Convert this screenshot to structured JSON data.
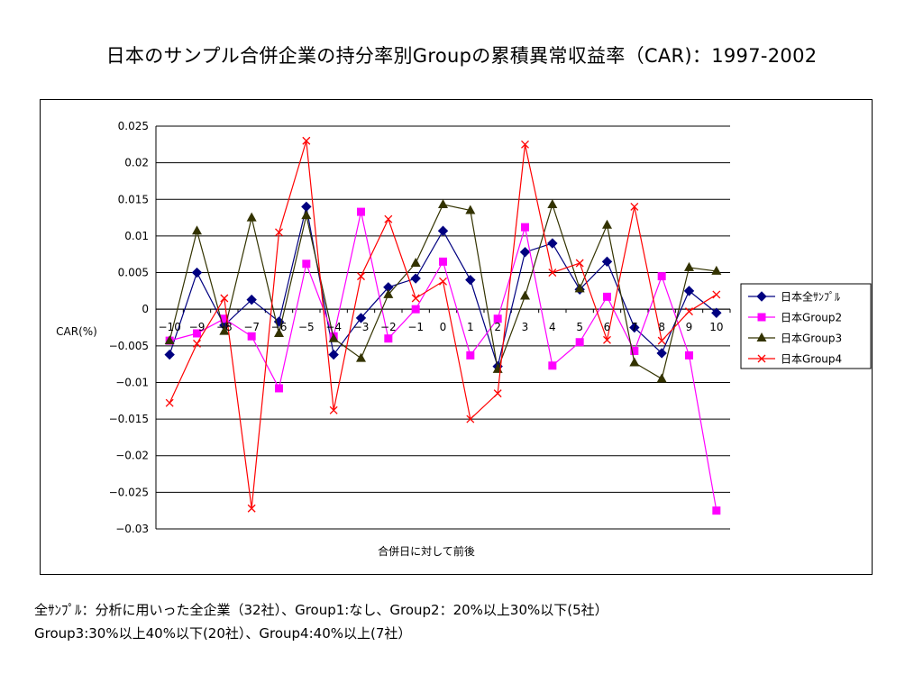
{
  "slide": {
    "title": "日本のサンプル合併企業の持分率別Groupの累積異常収益率（CAR)：1997-2002",
    "notes": [
      "全ｻﾝﾌﾟﾙ：分析に用いった全企業（32社）、Group1:なし、Group2：20%以上30%以下(5社）",
      "Group3:30%以上40%以下(20社）、Group4:40%以上(7社）"
    ]
  },
  "chart_data": {
    "type": "line",
    "title": "",
    "xlabel": "合併日に対して前後",
    "ylabel": "CAR(%)",
    "categories": [
      "-10",
      "-9",
      "-8",
      "-7",
      "-6",
      "-5",
      "-4",
      "-3",
      "-2",
      "-1",
      "0",
      "1",
      "2",
      "3",
      "4",
      "5",
      "6",
      "7",
      "8",
      "9",
      "10"
    ],
    "ylim": [
      -0.03,
      0.025
    ],
    "yticks": [
      0.025,
      0.02,
      0.015,
      0.01,
      0.005,
      0,
      -0.005,
      -0.01,
      -0.015,
      -0.02,
      -0.025,
      -0.03
    ],
    "ytick_labels": [
      "0.025",
      "0.02",
      "0.015",
      "0.01",
      "0.005",
      "0",
      "−0.005",
      "−0.01",
      "−0.015",
      "−0.02",
      "−0.025",
      "−0.03"
    ],
    "xtick_labels": [
      "−10",
      "−9",
      "−8",
      "−7",
      "−6",
      "−5",
      "−4",
      "−3",
      "−2",
      "−1",
      "0",
      "1",
      "2",
      "3",
      "4",
      "5",
      "6",
      "7",
      "8",
      "9",
      "10"
    ],
    "grid": true,
    "legend_position": "right",
    "series": [
      {
        "name": "日本全ｻﾝﾌﾟﾙ",
        "color": "#000080",
        "marker": "diamond",
        "values": [
          -0.0062,
          0.005,
          -0.0022,
          0.0013,
          -0.0017,
          0.014,
          -0.0062,
          -0.0012,
          0.003,
          0.0042,
          0.0107,
          0.004,
          -0.0078,
          0.0078,
          0.009,
          0.0027,
          0.0065,
          -0.0025,
          -0.006,
          0.0025,
          -0.0005
        ]
      },
      {
        "name": "日本Group2",
        "color": "#ff00ff",
        "marker": "square",
        "values": [
          -0.0043,
          -0.0033,
          -0.0013,
          -0.0037,
          -0.0108,
          0.0062,
          -0.0037,
          0.0133,
          -0.004,
          0.0,
          0.0065,
          -0.0063,
          -0.0013,
          0.0112,
          -0.0077,
          -0.0045,
          0.0017,
          -0.0057,
          0.0045,
          -0.0063,
          -0.0275
        ]
      },
      {
        "name": "日本Group3",
        "color": "#333300",
        "marker": "triangle",
        "values": [
          -0.0043,
          0.0107,
          -0.003,
          0.0125,
          -0.0033,
          0.0128,
          -0.004,
          -0.0067,
          0.002,
          0.0063,
          0.0143,
          0.0135,
          -0.0082,
          0.0018,
          0.0143,
          0.0028,
          0.0115,
          -0.0073,
          -0.0095,
          0.0057,
          0.0052
        ]
      },
      {
        "name": "日本Group4",
        "color": "#ff0000",
        "marker": "x",
        "values": [
          -0.0128,
          -0.0047,
          0.0015,
          -0.0272,
          0.0105,
          0.023,
          -0.0138,
          0.0045,
          0.0123,
          0.0015,
          0.0038,
          -0.015,
          -0.0115,
          0.0225,
          0.005,
          0.0063,
          -0.0042,
          0.014,
          -0.0043,
          -0.0003,
          0.002
        ]
      }
    ]
  }
}
